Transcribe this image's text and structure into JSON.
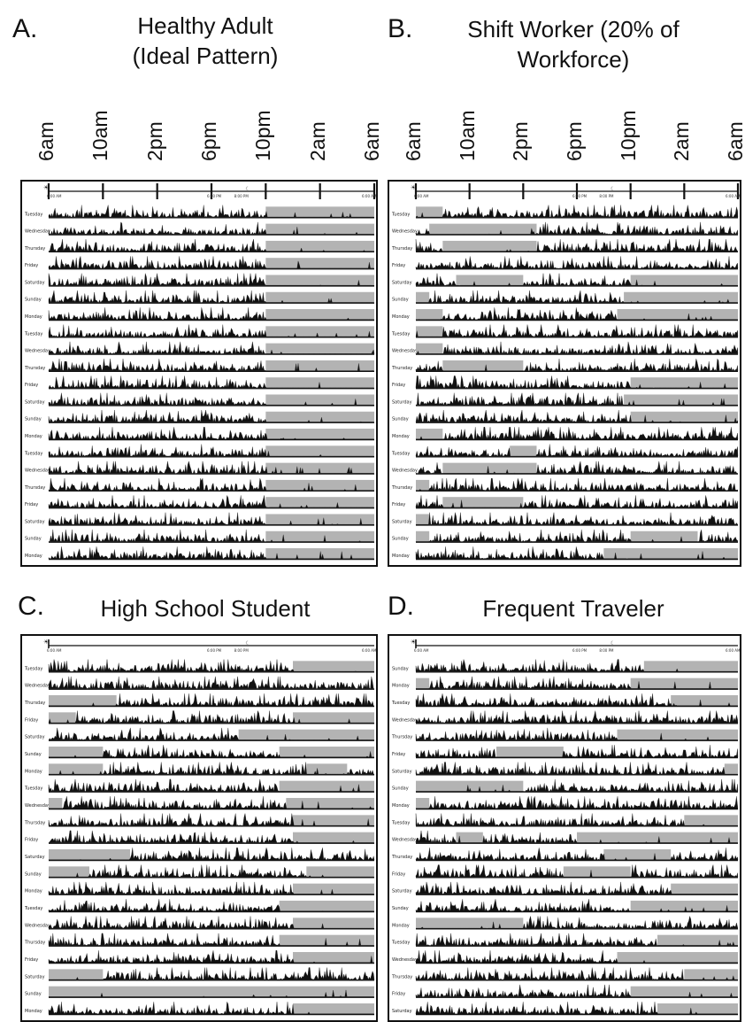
{
  "chart_data": [
    {
      "type": "actogram",
      "panel": "A.",
      "title_lines": [
        "Healthy Adult",
        "(Ideal Pattern)"
      ],
      "top_tick_labels": [
        "6am",
        "10am",
        "2pm",
        "6pm",
        "10pm",
        "2am",
        "6am"
      ],
      "inner_time_labels": [
        "6:00 AM",
        "6:00 PM",
        "8:00 PM",
        "6:00 AM"
      ],
      "days": [
        "Tuesday",
        "Wednesday",
        "Thursday",
        "Friday",
        "Saturday",
        "Sunday",
        "Monday",
        "Tuesday",
        "Wednesday",
        "Thursday",
        "Friday",
        "Saturday",
        "Sunday",
        "Monday",
        "Tuesday",
        "Wednesday",
        "Thursday",
        "Friday",
        "Saturday",
        "Sunday",
        "Monday"
      ],
      "sleep_bars_hours": [
        [
          [
            22,
            30
          ]
        ],
        [
          [
            22,
            30
          ]
        ],
        [
          [
            22,
            30
          ]
        ],
        [
          [
            22,
            30
          ]
        ],
        [
          [
            22,
            30
          ]
        ],
        [
          [
            22,
            30
          ]
        ],
        [
          [
            22,
            30
          ]
        ],
        [
          [
            22,
            30
          ]
        ],
        [
          [
            22,
            30
          ]
        ],
        [
          [
            22,
            30
          ]
        ],
        [
          [
            22,
            30
          ]
        ],
        [
          [
            22,
            30
          ]
        ],
        [
          [
            22,
            30
          ]
        ],
        [
          [
            22,
            30
          ]
        ],
        [
          [
            22,
            30
          ]
        ],
        [
          [
            22,
            30
          ]
        ],
        [
          [
            22,
            30
          ]
        ],
        [
          [
            22,
            30
          ]
        ],
        [
          [
            22,
            30
          ]
        ],
        [
          [
            22,
            30
          ]
        ],
        [
          [
            22,
            30
          ]
        ]
      ]
    },
    {
      "type": "actogram",
      "panel": "B.",
      "title_lines": [
        "Shift Worker (20% of",
        "Workforce)"
      ],
      "top_tick_labels": [
        "6am",
        "10am",
        "2pm",
        "6pm",
        "10pm",
        "2am",
        "6am"
      ],
      "inner_time_labels": [
        "6:00 AM",
        "6:00 PM",
        "8:00 PM",
        "6:00 AM"
      ],
      "days": [
        "Tuesday",
        "Wednesday",
        "Thursday",
        "Friday",
        "Saturday",
        "Sunday",
        "Monday",
        "Tuesday",
        "Wednesday",
        "Thursday",
        "Friday",
        "Saturday",
        "Sunday",
        "Monday",
        "Tuesday",
        "Wednesday",
        "Thursday",
        "Friday",
        "Saturday",
        "Sunday",
        "Monday"
      ],
      "sleep_bars_hours": [
        [
          [
            6,
            8
          ]
        ],
        [
          [
            7,
            15
          ]
        ],
        [
          [
            8,
            15
          ]
        ],
        [],
        [
          [
            9,
            14
          ],
          [
            22,
            30
          ]
        ],
        [
          [
            6,
            7
          ],
          [
            21.5,
            30
          ]
        ],
        [
          [
            6,
            8
          ],
          [
            21,
            30
          ]
        ],
        [
          [
            6,
            8
          ]
        ],
        [
          [
            6,
            8
          ]
        ],
        [
          [
            8,
            14
          ]
        ],
        [
          [
            22,
            30
          ]
        ],
        [
          [
            21.5,
            30
          ]
        ],
        [
          [
            22,
            30
          ]
        ],
        [
          [
            6,
            8
          ]
        ],
        [
          [
            13,
            15
          ]
        ],
        [
          [
            8,
            15
          ]
        ],
        [
          [
            6,
            7
          ]
        ],
        [
          [
            8,
            14
          ]
        ],
        [
          [
            6,
            7
          ]
        ],
        [
          [
            6,
            7
          ],
          [
            22,
            27
          ]
        ],
        [
          [
            20,
            30
          ]
        ]
      ]
    },
    {
      "type": "actogram",
      "panel": "C.",
      "title_lines": [
        "High School Student"
      ],
      "top_tick_labels": [],
      "inner_time_labels": [
        "6:00 AM",
        "6:00 PM",
        "8:00 PM",
        "6:00 AM"
      ],
      "days": [
        "Tuesday",
        "Wednesday",
        "Thursday",
        "Friday",
        "Saturday",
        "Sunday",
        "Monday",
        "Tuesday",
        "Wednesday",
        "Thursday",
        "Friday",
        "Saturday",
        "Sunday",
        "Monday",
        "Tuesday",
        "Wednesday",
        "Thursday",
        "Friday",
        "Saturday",
        "Sunday",
        "Monday"
      ],
      "sleep_bars_hours": [
        [
          [
            24,
            30
          ]
        ],
        [],
        [
          [
            6,
            11
          ]
        ],
        [
          [
            6,
            8
          ],
          [
            24,
            30
          ]
        ],
        [
          [
            20,
            30
          ]
        ],
        [
          [
            6,
            10
          ],
          [
            23,
            30
          ]
        ],
        [
          [
            6,
            10
          ],
          [
            25,
            28
          ]
        ],
        [
          [
            23,
            30
          ]
        ],
        [
          [
            6,
            7
          ],
          [
            23.5,
            30
          ]
        ],
        [
          [
            24,
            30
          ]
        ],
        [
          [
            24,
            30
          ]
        ],
        [
          [
            6,
            12
          ]
        ],
        [
          [
            6,
            9
          ],
          [
            25,
            30
          ]
        ],
        [
          [
            24,
            30
          ]
        ],
        [
          [
            23,
            30
          ]
        ],
        [
          [
            24,
            30
          ]
        ],
        [
          [
            23,
            30
          ]
        ],
        [
          [
            24,
            30
          ]
        ],
        [
          [
            6,
            10
          ]
        ],
        [
          [
            6,
            30
          ]
        ],
        [
          [
            24,
            30
          ]
        ]
      ]
    },
    {
      "type": "actogram",
      "panel": "D.",
      "title_lines": [
        "Frequent Traveler"
      ],
      "top_tick_labels": [],
      "inner_time_labels": [
        "6:00 AM",
        "6:00 PM",
        "8:00 PM",
        "6:00 AM"
      ],
      "days": [
        "Sunday",
        "Monday",
        "Tuesday",
        "Wednesday",
        "Thursday",
        "Friday",
        "Saturday",
        "Sunday",
        "Monday",
        "Tuesday",
        "Wednesday",
        "Thursday",
        "Friday",
        "Saturday",
        "Sunday",
        "Monday",
        "Tuesday",
        "Wednesday",
        "Thursday",
        "Friday",
        "Saturday"
      ],
      "sleep_bars_hours": [
        [
          [
            23,
            30
          ]
        ],
        [
          [
            6,
            7
          ],
          [
            22,
            30
          ]
        ],
        [
          [
            25,
            30
          ]
        ],
        [],
        [
          [
            21,
            30
          ]
        ],
        [
          [
            12,
            17
          ]
        ],
        [
          [
            29,
            30
          ]
        ],
        [
          [
            6,
            14
          ]
        ],
        [
          [
            6,
            7
          ]
        ],
        [
          [
            26,
            30
          ]
        ],
        [
          [
            9,
            11
          ],
          [
            18,
            30
          ]
        ],
        [
          [
            20,
            25
          ]
        ],
        [
          [
            17,
            22
          ]
        ],
        [
          [
            25,
            30
          ]
        ],
        [
          [
            22,
            30
          ]
        ],
        [
          [
            6,
            14
          ]
        ],
        [
          [
            24,
            30
          ]
        ],
        [
          [
            21,
            30
          ]
        ],
        [
          [
            26,
            30
          ]
        ],
        [
          [
            22,
            30
          ]
        ],
        [
          [
            24,
            30
          ]
        ]
      ]
    }
  ]
}
